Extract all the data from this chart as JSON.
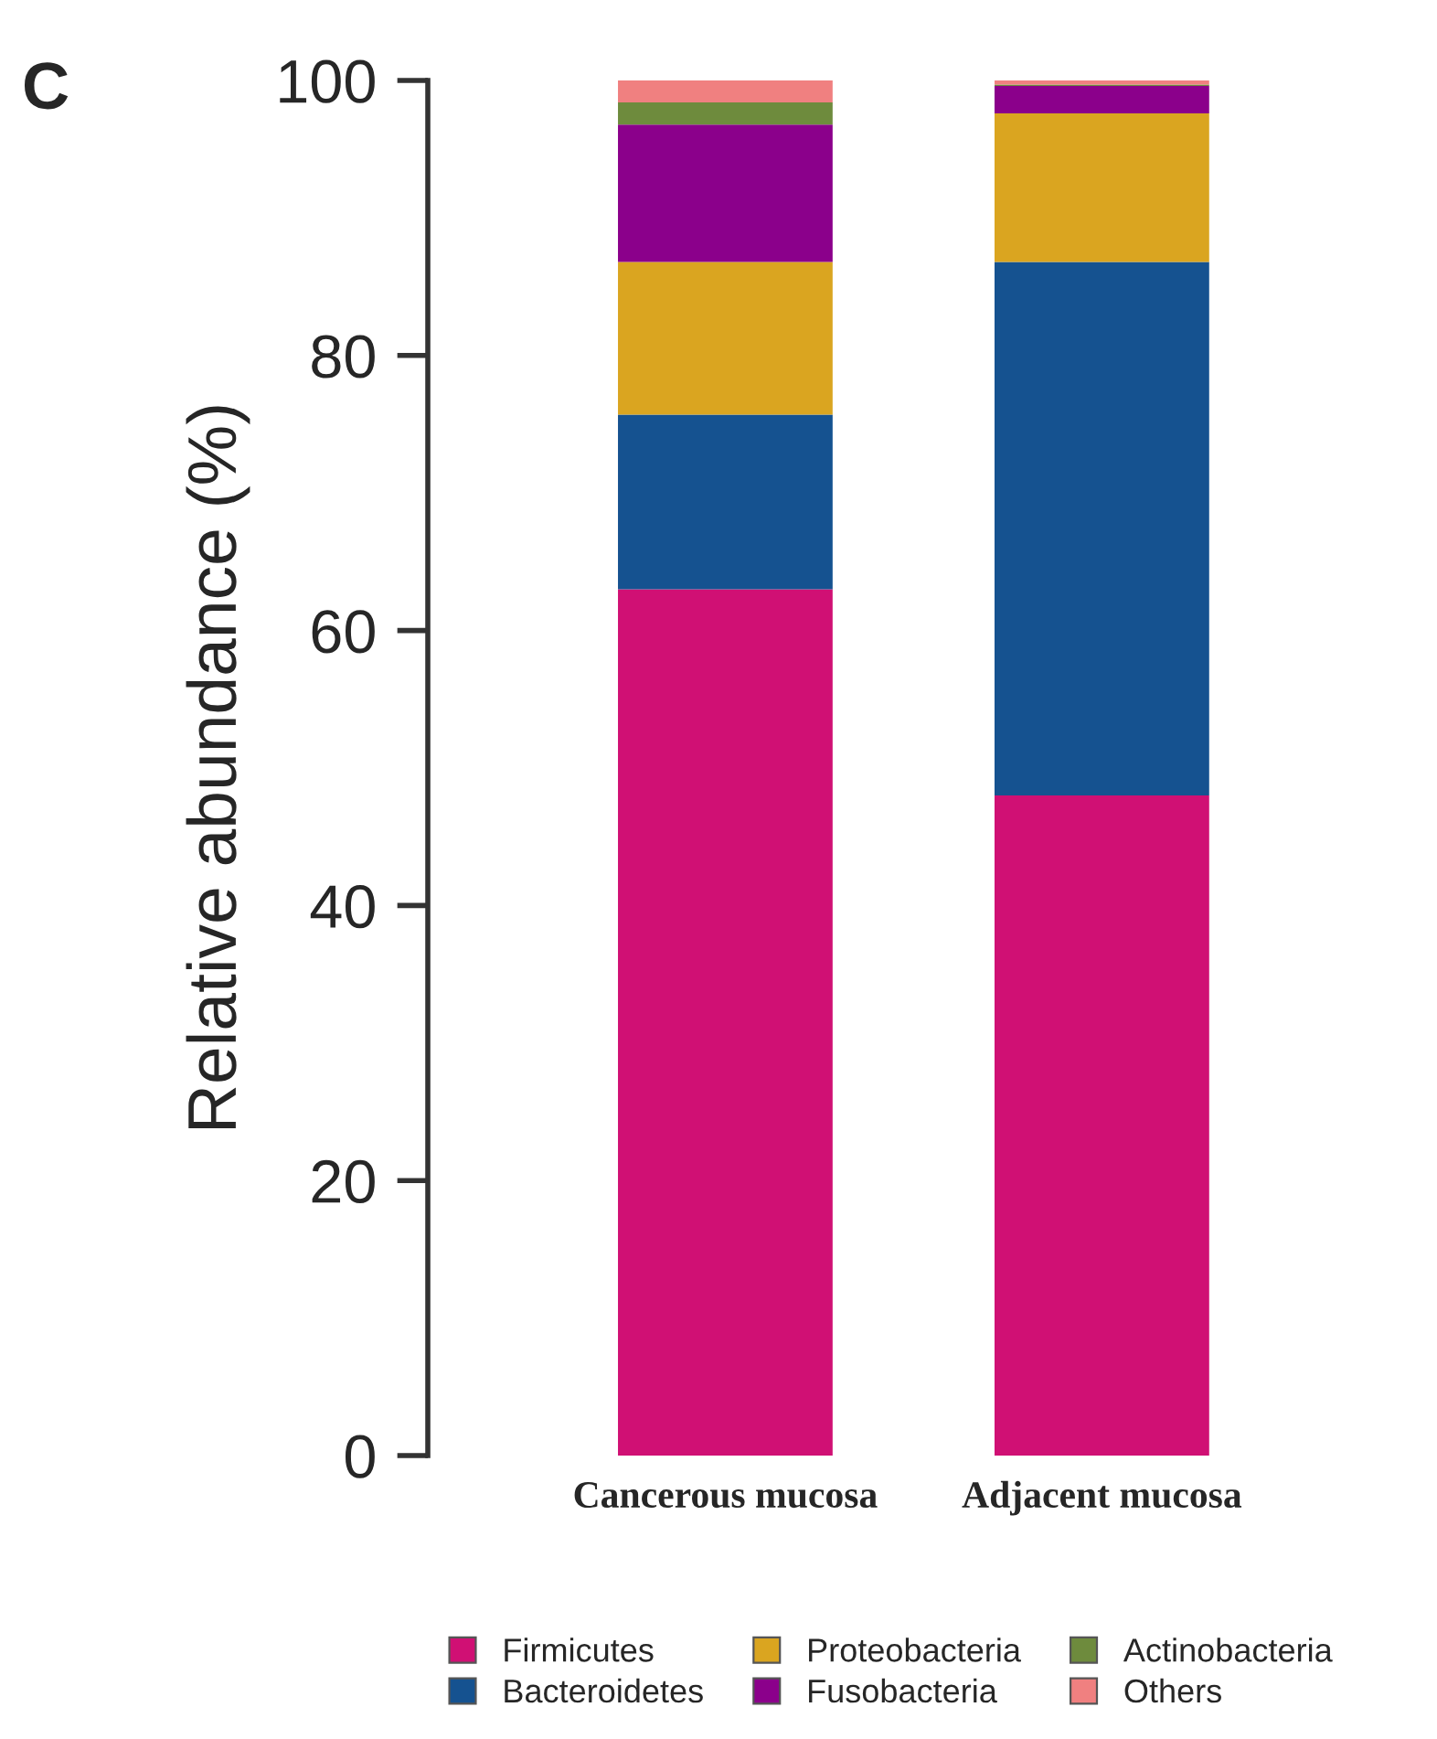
{
  "chart_data": {
    "type": "bar",
    "stacked": true,
    "ylabel": "Relative abundance (%)",
    "annotations": [
      "C"
    ],
    "categories": [
      "Cancerous mucosa",
      "Adjacent mucosa"
    ],
    "series": [
      {
        "name": "Firmicutes",
        "color": "#d01074",
        "values": [
          63,
          48
        ]
      },
      {
        "name": "Bacteroidetes",
        "color": "#155290",
        "values": [
          12.7,
          38.8
        ]
      },
      {
        "name": "Proteobacteria",
        "color": "#daa520",
        "values": [
          11.1,
          10.8
        ]
      },
      {
        "name": "Fusobacteria",
        "color": "#8b008b",
        "values": [
          10,
          2
        ]
      },
      {
        "name": "Actinobacteria",
        "color": "#6e8b3d",
        "values": [
          1.6,
          0.1
        ]
      },
      {
        "name": "Others",
        "color": "#f08080",
        "values": [
          1.6,
          0.3
        ]
      }
    ],
    "ylim": [
      0,
      100
    ],
    "yticks": [
      0,
      20,
      40,
      60,
      80,
      100
    ],
    "grid": false,
    "legend": "bottom"
  }
}
